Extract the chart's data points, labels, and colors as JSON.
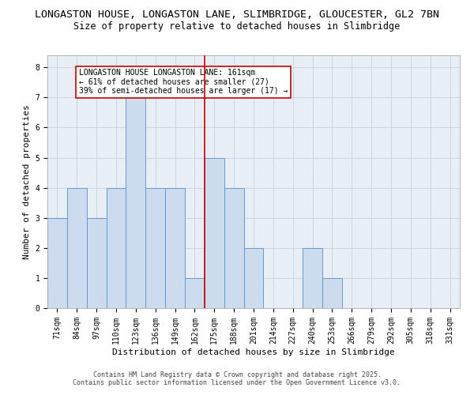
{
  "title_line1": "LONGASTON HOUSE, LONGASTON LANE, SLIMBRIDGE, GLOUCESTER, GL2 7BN",
  "title_line2": "Size of property relative to detached houses in Slimbridge",
  "xlabel": "Distribution of detached houses by size in Slimbridge",
  "ylabel": "Number of detached properties",
  "footer_line1": "Contains HM Land Registry data © Crown copyright and database right 2025.",
  "footer_line2": "Contains public sector information licensed under the Open Government Licence v3.0.",
  "categories": [
    "71sqm",
    "84sqm",
    "97sqm",
    "110sqm",
    "123sqm",
    "136sqm",
    "149sqm",
    "162sqm",
    "175sqm",
    "188sqm",
    "201sqm",
    "214sqm",
    "227sqm",
    "240sqm",
    "253sqm",
    "266sqm",
    "279sqm",
    "292sqm",
    "305sqm",
    "318sqm",
    "331sqm"
  ],
  "values": [
    3,
    4,
    3,
    4,
    7,
    4,
    4,
    1,
    5,
    4,
    2,
    0,
    0,
    2,
    1,
    0,
    0,
    0,
    0,
    0,
    0
  ],
  "bar_color": "#ccdcee",
  "bar_edge_color": "#6699cc",
  "grid_color": "#c8d0de",
  "background_color": "#e8eef6",
  "vline_color": "#cc0000",
  "vline_x": 7.5,
  "annotation_text": "LONGASTON HOUSE LONGASTON LANE: 161sqm\n← 61% of detached houses are smaller (27)\n39% of semi-detached houses are larger (17) →",
  "annotation_box_edgecolor": "#cc0000",
  "ylim": [
    0,
    8.4
  ],
  "yticks": [
    0,
    1,
    2,
    3,
    4,
    5,
    6,
    7,
    8
  ],
  "title_fontsize": 9.5,
  "subtitle_fontsize": 8.5,
  "axis_label_fontsize": 8,
  "tick_fontsize": 7,
  "annot_fontsize": 7,
  "footer_fontsize": 6
}
